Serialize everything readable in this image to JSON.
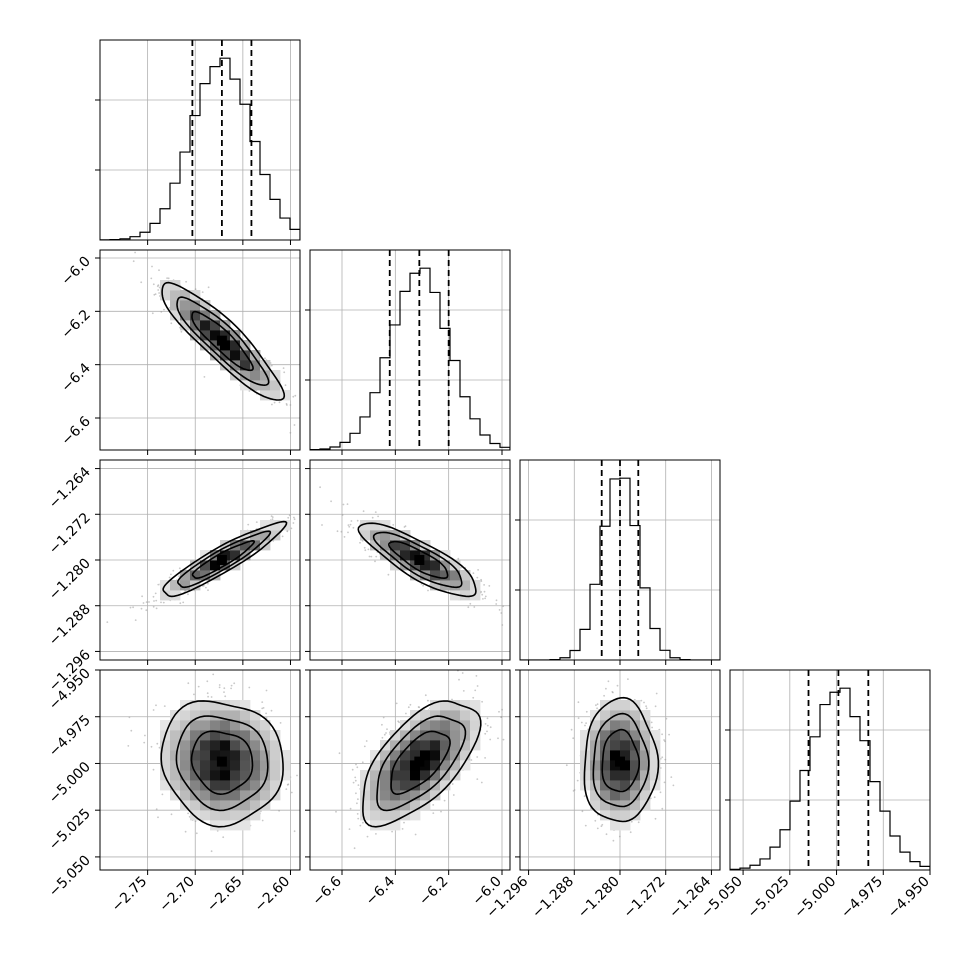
{
  "chart_data": {
    "type": "corner",
    "n_params": 4,
    "grid": true,
    "colors": {
      "axis": "#000000",
      "grid": "#b0b0b0",
      "scatter": "#9a9a9a",
      "density_max": "#000000"
    },
    "params": [
      {
        "mean": -2.672,
        "sd": 0.032,
        "range": [
          -2.8,
          -2.59
        ],
        "ticks": [
          -2.75,
          -2.7,
          -2.65,
          -2.6
        ],
        "tick_labels": [
          "−2.75",
          "−2.70",
          "−2.65",
          "−2.60"
        ],
        "quantiles": [
          -2.703,
          -2.672,
          -2.641
        ]
      },
      {
        "mean": -6.31,
        "sd": 0.11,
        "range": [
          -6.72,
          -5.97
        ],
        "ticks": [
          -6.6,
          -6.4,
          -6.2,
          -6.0
        ],
        "tick_labels": [
          "−6.6",
          "−6.4",
          "−6.2",
          "−6.0"
        ],
        "quantiles": [
          -6.421,
          -6.31,
          -6.2
        ]
      },
      {
        "mean": -1.28,
        "sd": 0.0032,
        "range": [
          -1.2975,
          -1.2625
        ],
        "ticks": [
          -1.296,
          -1.288,
          -1.28,
          -1.272,
          -1.264
        ],
        "tick_labels": [
          "−1.296",
          "−1.288",
          "−1.280",
          "−1.272",
          "−1.264"
        ],
        "quantiles": [
          -1.2832,
          -1.28,
          -1.2768
        ]
      },
      {
        "mean": -4.999,
        "sd": 0.0165,
        "range": [
          -5.057,
          -4.95
        ],
        "ticks": [
          -5.05,
          -5.025,
          -5.0,
          -4.975,
          -4.95
        ],
        "tick_labels": [
          "−5.050",
          "−5.025",
          "−5.000",
          "−4.975",
          "−4.950"
        ],
        "quantiles": [
          -5.015,
          -4.999,
          -4.983
        ]
      }
    ],
    "correlations": {
      "1-0": -0.9,
      "2-0": 0.92,
      "2-1": -0.83,
      "3-0": -0.08,
      "3-1": 0.62,
      "3-2": 0.02
    },
    "histogram_bins": 20,
    "contour_levels_sigma": [
      1,
      1.5,
      2
    ]
  }
}
